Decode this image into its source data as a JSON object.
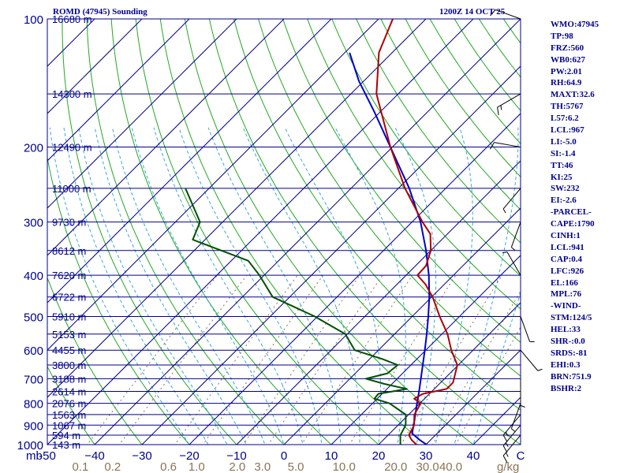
{
  "header": {
    "station": "ROMD (47945) Sounding",
    "time": "1200Z 14 OCT 25"
  },
  "indices": [
    "WMO:47945",
    "TP:98",
    "FRZ:560",
    "WB0:627",
    "PW:2.01",
    "RH:64.9",
    "MAXT:32.6",
    "TH:5767",
    "L57:6.2",
    "LCL:967",
    "LI:-5.0",
    "SI:-1.4",
    "TT:46",
    "KI:25",
    "SW:232",
    "EI:-2.6",
    "-PARCEL-",
    "CAPE:1790",
    "CINH:1",
    "LCL:941",
    "CAP:0.4",
    "LFC:926",
    "EL:166",
    "MPL:76",
    "-WIND-",
    "STM:124/5",
    "HEL:33",
    "SHR-:0.0",
    "SRDS:-81",
    "EHI:0.3",
    "BRN:751.9",
    "BSHR:2"
  ],
  "colors": {
    "isobar": "#00008b",
    "isotherm": "#00008b",
    "dry_adiabat": "#22a822",
    "moist_adiabat": "#3aa7d8",
    "mixing_ratio": "#8b7355",
    "temperature": "#b00000",
    "dewpoint": "#005000",
    "parcel": "#0000cc",
    "wind": "#000000"
  },
  "chart_data": {
    "type": "skew-t",
    "title": "ROMD (47945) Sounding",
    "xlabel": "°C",
    "unit_mb": "mb",
    "unit_gkg": "g/kg",
    "pressure_range": [
      1000,
      100
    ],
    "temp_ticks": [
      -50,
      -40,
      -30,
      -20,
      -10,
      0,
      10,
      20,
      30,
      40,
      50
    ],
    "temp_tick_labels": [
      "-50",
      "−40",
      "−30",
      "−20",
      "−10",
      "0",
      "10",
      "20",
      "30",
      "40",
      "C"
    ],
    "pressure_levels": [
      100,
      200,
      300,
      400,
      500,
      600,
      700,
      800,
      900,
      1000
    ],
    "pressure_labels": [
      "100",
      "200",
      "300",
      "400",
      "500",
      "600",
      "700",
      "800",
      "900",
      "1000"
    ],
    "mixing_ratio_labels": [
      "0.1",
      "0.2",
      "0.6",
      "1.0",
      "2.0",
      "3.0",
      "5.0",
      "10.0",
      "20.0",
      "30.0",
      "40.0"
    ],
    "height_levels": [
      {
        "p": 100,
        "label": "16680 m"
      },
      {
        "p": 150,
        "label": "14300 m"
      },
      {
        "p": 200,
        "label": "12490 m"
      },
      {
        "p": 250,
        "label": "11000 m"
      },
      {
        "p": 300,
        "label": "9730 m"
      },
      {
        "p": 350,
        "label": "8612 m"
      },
      {
        "p": 400,
        "label": "7620 m"
      },
      {
        "p": 450,
        "label": "6722 m"
      },
      {
        "p": 500,
        "label": "5910 m"
      },
      {
        "p": 550,
        "label": "5153 m"
      },
      {
        "p": 600,
        "label": "4455 m"
      },
      {
        "p": 650,
        "label": "3800 m"
      },
      {
        "p": 700,
        "label": "3188 m"
      },
      {
        "p": 750,
        "label": "2614 m"
      },
      {
        "p": 800,
        "label": "2076 m"
      },
      {
        "p": 850,
        "label": "1563 m"
      },
      {
        "p": 900,
        "label": "1067 m"
      },
      {
        "p": 950,
        "label": "594 m"
      },
      {
        "p": 1000,
        "label": "143 m"
      }
    ],
    "temperature": [
      {
        "p": 1009,
        "t": 30.0
      },
      {
        "p": 1000,
        "t": 28.0
      },
      {
        "p": 975,
        "t": 26.0
      },
      {
        "p": 950,
        "t": 24.4
      },
      {
        "p": 900,
        "t": 23.4
      },
      {
        "p": 850,
        "t": 21.2
      },
      {
        "p": 800,
        "t": 20.2
      },
      {
        "p": 780,
        "t": 17.8
      },
      {
        "p": 760,
        "t": 18.6
      },
      {
        "p": 740,
        "t": 22.6
      },
      {
        "p": 715,
        "t": 22.6
      },
      {
        "p": 700,
        "t": 22.0
      },
      {
        "p": 650,
        "t": 19.8
      },
      {
        "p": 600,
        "t": 15.4
      },
      {
        "p": 550,
        "t": 11.2
      },
      {
        "p": 500,
        "t": 5.8
      },
      {
        "p": 450,
        "t": 0.2
      },
      {
        "p": 420,
        "t": -4.0
      },
      {
        "p": 400,
        "t": -7.6
      },
      {
        "p": 380,
        "t": -7.8
      },
      {
        "p": 350,
        "t": -10.0
      },
      {
        "p": 320,
        "t": -13.6
      },
      {
        "p": 300,
        "t": -17.8
      },
      {
        "p": 250,
        "t": -28.6
      },
      {
        "p": 200,
        "t": -40.4
      },
      {
        "p": 150,
        "t": -54.6
      },
      {
        "p": 120,
        "t": -62.8
      },
      {
        "p": 100,
        "t": -67.0
      }
    ],
    "dewpoint": [
      {
        "p": 1009,
        "t": 24.5
      },
      {
        "p": 1000,
        "t": 24.6
      },
      {
        "p": 950,
        "t": 22.6
      },
      {
        "p": 900,
        "t": 21.6
      },
      {
        "p": 850,
        "t": 19.4
      },
      {
        "p": 800,
        "t": 13.6
      },
      {
        "p": 780,
        "t": 9.4
      },
      {
        "p": 760,
        "t": 9.2
      },
      {
        "p": 740,
        "t": 14.2
      },
      {
        "p": 720,
        "t": 8.4
      },
      {
        "p": 700,
        "t": 3.4
      },
      {
        "p": 680,
        "t": 6.8
      },
      {
        "p": 650,
        "t": 7.2
      },
      {
        "p": 630,
        "t": 2.8
      },
      {
        "p": 600,
        "t": -5.0
      },
      {
        "p": 550,
        "t": -10.4
      },
      {
        "p": 520,
        "t": -16.4
      },
      {
        "p": 500,
        "t": -20.6
      },
      {
        "p": 450,
        "t": -33.6
      },
      {
        "p": 400,
        "t": -41.0
      },
      {
        "p": 370,
        "t": -46.4
      },
      {
        "p": 330,
        "t": -62.6
      },
      {
        "p": 300,
        "t": -64.8
      },
      {
        "p": 250,
        "t": -75.0
      }
    ],
    "parcel": [
      {
        "p": 1009,
        "t": 31.0
      },
      {
        "p": 975,
        "t": 27.7
      },
      {
        "p": 941,
        "t": 24.7
      },
      {
        "p": 900,
        "t": 23.3
      },
      {
        "p": 850,
        "t": 21.4
      },
      {
        "p": 800,
        "t": 19.4
      },
      {
        "p": 750,
        "t": 17.3
      },
      {
        "p": 700,
        "t": 15.0
      },
      {
        "p": 650,
        "t": 12.5
      },
      {
        "p": 600,
        "t": 9.8
      },
      {
        "p": 550,
        "t": 6.8
      },
      {
        "p": 500,
        "t": 3.4
      },
      {
        "p": 450,
        "t": -0.5
      },
      {
        "p": 400,
        "t": -5.2
      },
      {
        "p": 350,
        "t": -11.0
      },
      {
        "p": 300,
        "t": -18.2
      },
      {
        "p": 250,
        "t": -27.7
      },
      {
        "p": 200,
        "t": -40.4
      },
      {
        "p": 166,
        "t": -51.0
      },
      {
        "p": 140,
        "t": -61.0
      },
      {
        "p": 120,
        "t": -69.0
      }
    ],
    "wind_barbs": [
      {
        "p": 100,
        "dir": 290,
        "kt": 10
      },
      {
        "p": 150,
        "dir": 240,
        "kt": 15
      },
      {
        "p": 200,
        "dir": 280,
        "kt": 10
      },
      {
        "p": 250,
        "dir": 220,
        "kt": 5
      },
      {
        "p": 300,
        "dir": 200,
        "kt": 5
      },
      {
        "p": 400,
        "dir": 330,
        "kt": 5
      },
      {
        "p": 500,
        "dir": 160,
        "kt": 5
      },
      {
        "p": 600,
        "dir": 140,
        "kt": 5
      },
      {
        "p": 700,
        "dir": 180,
        "kt": 5
      },
      {
        "p": 800,
        "dir": 200,
        "kt": 5
      },
      {
        "p": 850,
        "dir": 220,
        "kt": 15
      },
      {
        "p": 900,
        "dir": 220,
        "kt": 15
      },
      {
        "p": 950,
        "dir": 220,
        "kt": 15
      }
    ]
  }
}
